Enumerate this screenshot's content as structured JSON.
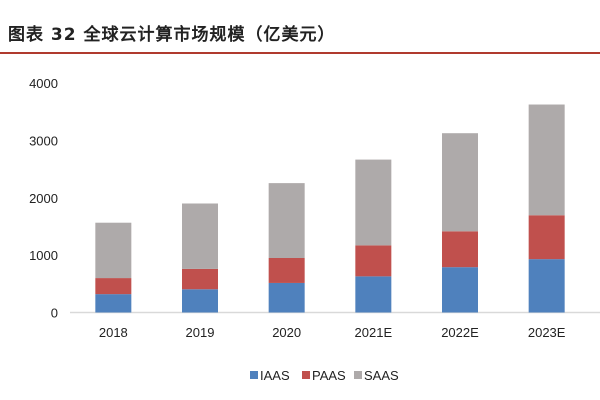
{
  "title": "图表 32 全球云计算市场规模（亿美元）",
  "chart_data": {
    "type": "bar",
    "stacked": true,
    "categories": [
      "2018",
      "2019",
      "2020",
      "2021E",
      "2022E",
      "2023E"
    ],
    "series": [
      {
        "name": "IAAS",
        "color": "#4f81bd",
        "values": [
          320,
          405,
          515,
          630,
          790,
          930
        ]
      },
      {
        "name": "PAAS",
        "color": "#c0504d",
        "values": [
          280,
          355,
          435,
          540,
          625,
          765
        ]
      },
      {
        "name": "SAAS",
        "color": "#aeaaaa",
        "values": [
          965,
          1140,
          1305,
          1495,
          1710,
          1930
        ]
      }
    ],
    "ylim": [
      0,
      4000
    ],
    "yticks": [
      "0",
      "1000",
      "2000",
      "3000",
      "4000"
    ],
    "grid": false,
    "legend": "bottom"
  }
}
